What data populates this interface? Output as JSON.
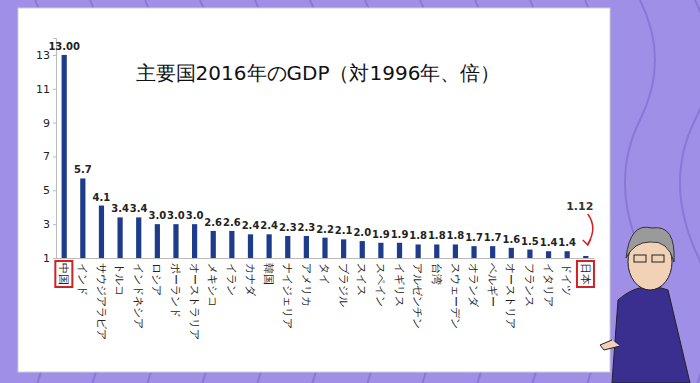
{
  "chart_data": {
    "type": "bar",
    "title": "主要国2016年のGDP（対1996年、倍）",
    "categories": [
      "中国",
      "インド",
      "サウジアラビア",
      "トルコ",
      "インドネシア",
      "ロシア",
      "ポーランド",
      "オーストラリア",
      "メキシコ",
      "イラン",
      "カナダ",
      "韓国",
      "ナイジェリア",
      "アメリカ",
      "タイ",
      "ブラジル",
      "スイス",
      "スペイン",
      "イギリス",
      "アルゼンチン",
      "台湾",
      "スウェーデン",
      "オランダ",
      "ベルギー",
      "オーストリア",
      "フランス",
      "イタリア",
      "ドイツ",
      "日本"
    ],
    "values": [
      13.0,
      5.7,
      4.1,
      3.4,
      3.4,
      3.0,
      3.0,
      3.0,
      2.6,
      2.6,
      2.4,
      2.4,
      2.3,
      2.3,
      2.2,
      2.1,
      2.0,
      1.9,
      1.9,
      1.8,
      1.8,
      1.8,
      1.7,
      1.7,
      1.6,
      1.5,
      1.4,
      1.4,
      1.12
    ],
    "value_labels": [
      "13.00",
      "5.7",
      "4.1",
      "3.4",
      "3.4",
      "3.0",
      "3.0",
      "3.0",
      "2.6",
      "2.6",
      "2.4",
      "2.4",
      "2.3",
      "2.3",
      "2.2",
      "2.1",
      "2.0",
      "1.9",
      "1.9",
      "1.8",
      "1.8",
      "1.8",
      "1.7",
      "1.7",
      "1.6",
      "1.5",
      "1.4",
      "1.4",
      "1.12"
    ],
    "color": "#1f3c8c",
    "ylim": [
      1,
      14
    ],
    "yticks": [
      1,
      3,
      5,
      7,
      9,
      11,
      13
    ],
    "grid": false,
    "data_labels": true
  }
}
